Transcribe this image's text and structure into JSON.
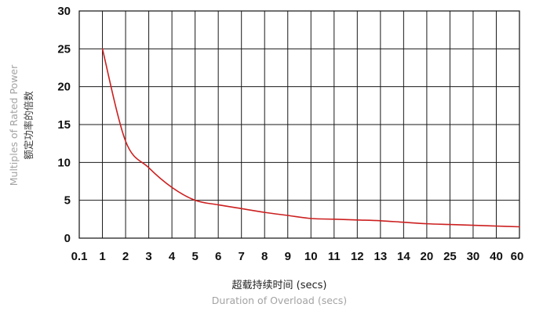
{
  "chart_data": {
    "type": "line",
    "title": "",
    "ylabel_en": "Multiples of Rated Power",
    "ylabel_cn": "额定功率的倍数",
    "xlabel_cn": "超载持续时间 (secs)",
    "xlabel_en": "Duration of Overload (secs)",
    "x_ticks": [
      "0.1",
      "1",
      "2",
      "3",
      "4",
      "5",
      "6",
      "7",
      "8",
      "9",
      "10",
      "11",
      "12",
      "13",
      "14",
      "20",
      "25",
      "30",
      "40",
      "60"
    ],
    "y_ticks": [
      "0",
      "5",
      "10",
      "15",
      "20",
      "25",
      "30"
    ],
    "ylim": [
      0,
      30
    ],
    "grid": true,
    "line_color": "#cc1f1f",
    "series": [
      {
        "x": [
          "1",
          "2",
          "3",
          "4",
          "5",
          "6",
          "7",
          "8",
          "9",
          "10",
          "11",
          "12",
          "13",
          "14",
          "20",
          "25",
          "30",
          "40",
          "60"
        ],
        "values": [
          25,
          12.8,
          9.3,
          6.7,
          5.0,
          4.4,
          3.9,
          3.4,
          3.0,
          2.6,
          2.5,
          2.4,
          2.3,
          2.1,
          1.9,
          1.8,
          1.7,
          1.6,
          1.5
        ]
      }
    ]
  }
}
